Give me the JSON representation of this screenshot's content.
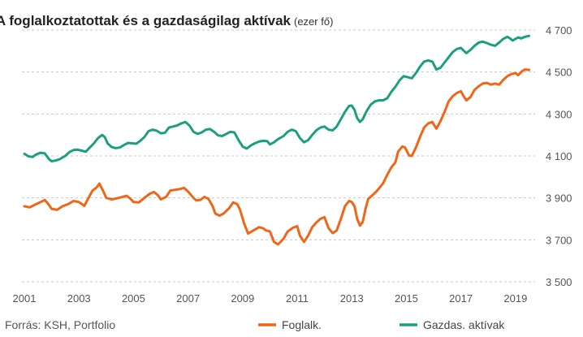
{
  "chart_data": {
    "type": "line",
    "title": "A foglalkoztatottak és a gazdaságilag aktívak",
    "title_unit": "(ezer fő)",
    "source": "Forrás: KSH, Portfolio",
    "x_tick_labels": [
      "2001",
      "2003",
      "2005",
      "2007",
      "2009",
      "2011",
      "2013",
      "2015",
      "2017",
      "2019"
    ],
    "y_tick_labels": [
      "3 500",
      "3 700",
      "3 900",
      "4 100",
      "4 300",
      "4 500",
      "4 700"
    ],
    "y_ticks": [
      3500,
      3700,
      3900,
      4100,
      4300,
      4500,
      4700
    ],
    "xlim": [
      2001,
      2019.6
    ],
    "ylim": [
      3500,
      4700
    ],
    "grid": "horizontal dashed",
    "legend_position": "bottom-right",
    "series": [
      {
        "name": "Foglalk.",
        "color": "#ef6618",
        "points": [
          [
            2001.0,
            3860
          ],
          [
            2001.2,
            3855
          ],
          [
            2001.4,
            3868
          ],
          [
            2001.6,
            3880
          ],
          [
            2001.75,
            3890
          ],
          [
            2001.85,
            3875
          ],
          [
            2002.0,
            3848
          ],
          [
            2002.2,
            3843
          ],
          [
            2002.4,
            3860
          ],
          [
            2002.6,
            3870
          ],
          [
            2002.8,
            3885
          ],
          [
            2003.0,
            3880
          ],
          [
            2003.2,
            3862
          ],
          [
            2003.35,
            3900
          ],
          [
            2003.5,
            3935
          ],
          [
            2003.65,
            3950
          ],
          [
            2003.75,
            3968
          ],
          [
            2003.9,
            3930
          ],
          [
            2004.0,
            3900
          ],
          [
            2004.2,
            3893
          ],
          [
            2004.4,
            3898
          ],
          [
            2004.6,
            3905
          ],
          [
            2004.75,
            3910
          ],
          [
            2004.9,
            3895
          ],
          [
            2005.0,
            3880
          ],
          [
            2005.2,
            3878
          ],
          [
            2005.4,
            3900
          ],
          [
            2005.6,
            3920
          ],
          [
            2005.75,
            3928
          ],
          [
            2005.9,
            3912
          ],
          [
            2006.0,
            3893
          ],
          [
            2006.2,
            3905
          ],
          [
            2006.35,
            3935
          ],
          [
            2006.5,
            3938
          ],
          [
            2006.7,
            3942
          ],
          [
            2006.85,
            3948
          ],
          [
            2007.0,
            3930
          ],
          [
            2007.2,
            3900
          ],
          [
            2007.3,
            3888
          ],
          [
            2007.45,
            3890
          ],
          [
            2007.6,
            3905
          ],
          [
            2007.75,
            3895
          ],
          [
            2007.9,
            3860
          ],
          [
            2008.0,
            3825
          ],
          [
            2008.15,
            3815
          ],
          [
            2008.3,
            3825
          ],
          [
            2008.5,
            3850
          ],
          [
            2008.65,
            3878
          ],
          [
            2008.8,
            3870
          ],
          [
            2008.9,
            3845
          ],
          [
            2009.05,
            3780
          ],
          [
            2009.2,
            3730
          ],
          [
            2009.4,
            3745
          ],
          [
            2009.6,
            3760
          ],
          [
            2009.75,
            3755
          ],
          [
            2009.85,
            3745
          ],
          [
            2010.0,
            3740
          ],
          [
            2010.15,
            3690
          ],
          [
            2010.3,
            3678
          ],
          [
            2010.5,
            3705
          ],
          [
            2010.65,
            3740
          ],
          [
            2010.85,
            3758
          ],
          [
            2011.0,
            3765
          ],
          [
            2011.1,
            3720
          ],
          [
            2011.25,
            3690
          ],
          [
            2011.4,
            3720
          ],
          [
            2011.55,
            3760
          ],
          [
            2011.7,
            3782
          ],
          [
            2011.85,
            3800
          ],
          [
            2012.0,
            3808
          ],
          [
            2012.15,
            3755
          ],
          [
            2012.3,
            3732
          ],
          [
            2012.45,
            3745
          ],
          [
            2012.6,
            3800
          ],
          [
            2012.75,
            3860
          ],
          [
            2012.9,
            3885
          ],
          [
            2013.0,
            3880
          ],
          [
            2013.1,
            3860
          ],
          [
            2013.2,
            3800
          ],
          [
            2013.3,
            3768
          ],
          [
            2013.4,
            3785
          ],
          [
            2013.5,
            3845
          ],
          [
            2013.6,
            3895
          ],
          [
            2013.75,
            3912
          ],
          [
            2013.9,
            3930
          ],
          [
            2014.0,
            3945
          ],
          [
            2014.15,
            3970
          ],
          [
            2014.3,
            4010
          ],
          [
            2014.45,
            4045
          ],
          [
            2014.6,
            4070
          ],
          [
            2014.7,
            4120
          ],
          [
            2014.85,
            4145
          ],
          [
            2014.95,
            4140
          ],
          [
            2015.1,
            4102
          ],
          [
            2015.2,
            4100
          ],
          [
            2015.35,
            4140
          ],
          [
            2015.5,
            4190
          ],
          [
            2015.65,
            4235
          ],
          [
            2015.8,
            4255
          ],
          [
            2015.95,
            4262
          ],
          [
            2016.1,
            4230
          ],
          [
            2016.25,
            4265
          ],
          [
            2016.4,
            4310
          ],
          [
            2016.55,
            4360
          ],
          [
            2016.7,
            4385
          ],
          [
            2016.85,
            4400
          ],
          [
            2017.0,
            4408
          ],
          [
            2017.1,
            4385
          ],
          [
            2017.2,
            4365
          ],
          [
            2017.35,
            4380
          ],
          [
            2017.5,
            4415
          ],
          [
            2017.65,
            4432
          ],
          [
            2017.8,
            4445
          ],
          [
            2017.95,
            4448
          ],
          [
            2018.1,
            4440
          ],
          [
            2018.25,
            4445
          ],
          [
            2018.4,
            4440
          ],
          [
            2018.55,
            4462
          ],
          [
            2018.7,
            4480
          ],
          [
            2018.85,
            4490
          ],
          [
            2019.0,
            4495
          ],
          [
            2019.1,
            4485
          ],
          [
            2019.25,
            4505
          ],
          [
            2019.35,
            4512
          ],
          [
            2019.5,
            4510
          ]
        ]
      },
      {
        "name": "Gazdas. aktívak",
        "color": "#1e9e81",
        "points": [
          [
            2001.0,
            4110
          ],
          [
            2001.15,
            4098
          ],
          [
            2001.3,
            4095
          ],
          [
            2001.45,
            4108
          ],
          [
            2001.6,
            4115
          ],
          [
            2001.75,
            4112
          ],
          [
            2001.9,
            4085
          ],
          [
            2002.0,
            4075
          ],
          [
            2002.15,
            4078
          ],
          [
            2002.3,
            4085
          ],
          [
            2002.5,
            4100
          ],
          [
            2002.65,
            4118
          ],
          [
            2002.8,
            4128
          ],
          [
            2002.95,
            4130
          ],
          [
            2003.1,
            4125
          ],
          [
            2003.25,
            4120
          ],
          [
            2003.4,
            4140
          ],
          [
            2003.55,
            4160
          ],
          [
            2003.7,
            4185
          ],
          [
            2003.85,
            4200
          ],
          [
            2003.95,
            4190
          ],
          [
            2004.05,
            4160
          ],
          [
            2004.2,
            4142
          ],
          [
            2004.35,
            4137
          ],
          [
            2004.5,
            4140
          ],
          [
            2004.65,
            4152
          ],
          [
            2004.8,
            4162
          ],
          [
            2004.95,
            4160
          ],
          [
            2005.1,
            4158
          ],
          [
            2005.25,
            4172
          ],
          [
            2005.4,
            4190
          ],
          [
            2005.55,
            4218
          ],
          [
            2005.7,
            4225
          ],
          [
            2005.85,
            4220
          ],
          [
            2006.0,
            4208
          ],
          [
            2006.15,
            4210
          ],
          [
            2006.3,
            4235
          ],
          [
            2006.45,
            4240
          ],
          [
            2006.6,
            4245
          ],
          [
            2006.75,
            4255
          ],
          [
            2006.9,
            4262
          ],
          [
            2007.05,
            4245
          ],
          [
            2007.2,
            4215
          ],
          [
            2007.35,
            4205
          ],
          [
            2007.5,
            4212
          ],
          [
            2007.65,
            4225
          ],
          [
            2007.8,
            4228
          ],
          [
            2007.95,
            4215
          ],
          [
            2008.1,
            4198
          ],
          [
            2008.25,
            4195
          ],
          [
            2008.4,
            4205
          ],
          [
            2008.55,
            4215
          ],
          [
            2008.7,
            4212
          ],
          [
            2008.85,
            4175
          ],
          [
            2009.0,
            4145
          ],
          [
            2009.15,
            4135
          ],
          [
            2009.3,
            4150
          ],
          [
            2009.45,
            4160
          ],
          [
            2009.6,
            4168
          ],
          [
            2009.75,
            4172
          ],
          [
            2009.9,
            4170
          ],
          [
            2010.0,
            4155
          ],
          [
            2010.15,
            4165
          ],
          [
            2010.3,
            4180
          ],
          [
            2010.5,
            4195
          ],
          [
            2010.65,
            4215
          ],
          [
            2010.8,
            4225
          ],
          [
            2010.95,
            4218
          ],
          [
            2011.1,
            4185
          ],
          [
            2011.25,
            4165
          ],
          [
            2011.4,
            4175
          ],
          [
            2011.55,
            4200
          ],
          [
            2011.7,
            4222
          ],
          [
            2011.85,
            4235
          ],
          [
            2012.0,
            4240
          ],
          [
            2012.15,
            4225
          ],
          [
            2012.3,
            4222
          ],
          [
            2012.45,
            4240
          ],
          [
            2012.6,
            4275
          ],
          [
            2012.75,
            4310
          ],
          [
            2012.9,
            4338
          ],
          [
            2013.0,
            4340
          ],
          [
            2013.1,
            4320
          ],
          [
            2013.2,
            4280
          ],
          [
            2013.3,
            4262
          ],
          [
            2013.4,
            4275
          ],
          [
            2013.55,
            4315
          ],
          [
            2013.7,
            4345
          ],
          [
            2013.85,
            4360
          ],
          [
            2014.0,
            4365
          ],
          [
            2014.15,
            4365
          ],
          [
            2014.3,
            4375
          ],
          [
            2014.45,
            4405
          ],
          [
            2014.6,
            4430
          ],
          [
            2014.75,
            4460
          ],
          [
            2014.9,
            4480
          ],
          [
            2015.05,
            4475
          ],
          [
            2015.2,
            4470
          ],
          [
            2015.35,
            4495
          ],
          [
            2015.5,
            4525
          ],
          [
            2015.65,
            4550
          ],
          [
            2015.8,
            4555
          ],
          [
            2015.95,
            4550
          ],
          [
            2016.1,
            4512
          ],
          [
            2016.25,
            4520
          ],
          [
            2016.4,
            4545
          ],
          [
            2016.55,
            4570
          ],
          [
            2016.7,
            4595
          ],
          [
            2016.85,
            4610
          ],
          [
            2017.0,
            4615
          ],
          [
            2017.1,
            4602
          ],
          [
            2017.2,
            4590
          ],
          [
            2017.35,
            4605
          ],
          [
            2017.5,
            4625
          ],
          [
            2017.65,
            4640
          ],
          [
            2017.8,
            4645
          ],
          [
            2017.95,
            4638
          ],
          [
            2018.1,
            4630
          ],
          [
            2018.25,
            4625
          ],
          [
            2018.4,
            4640
          ],
          [
            2018.55,
            4658
          ],
          [
            2018.7,
            4668
          ],
          [
            2018.8,
            4660
          ],
          [
            2018.9,
            4650
          ],
          [
            2019.0,
            4658
          ],
          [
            2019.1,
            4665
          ],
          [
            2019.2,
            4660
          ],
          [
            2019.35,
            4668
          ],
          [
            2019.5,
            4672
          ]
        ]
      }
    ]
  }
}
